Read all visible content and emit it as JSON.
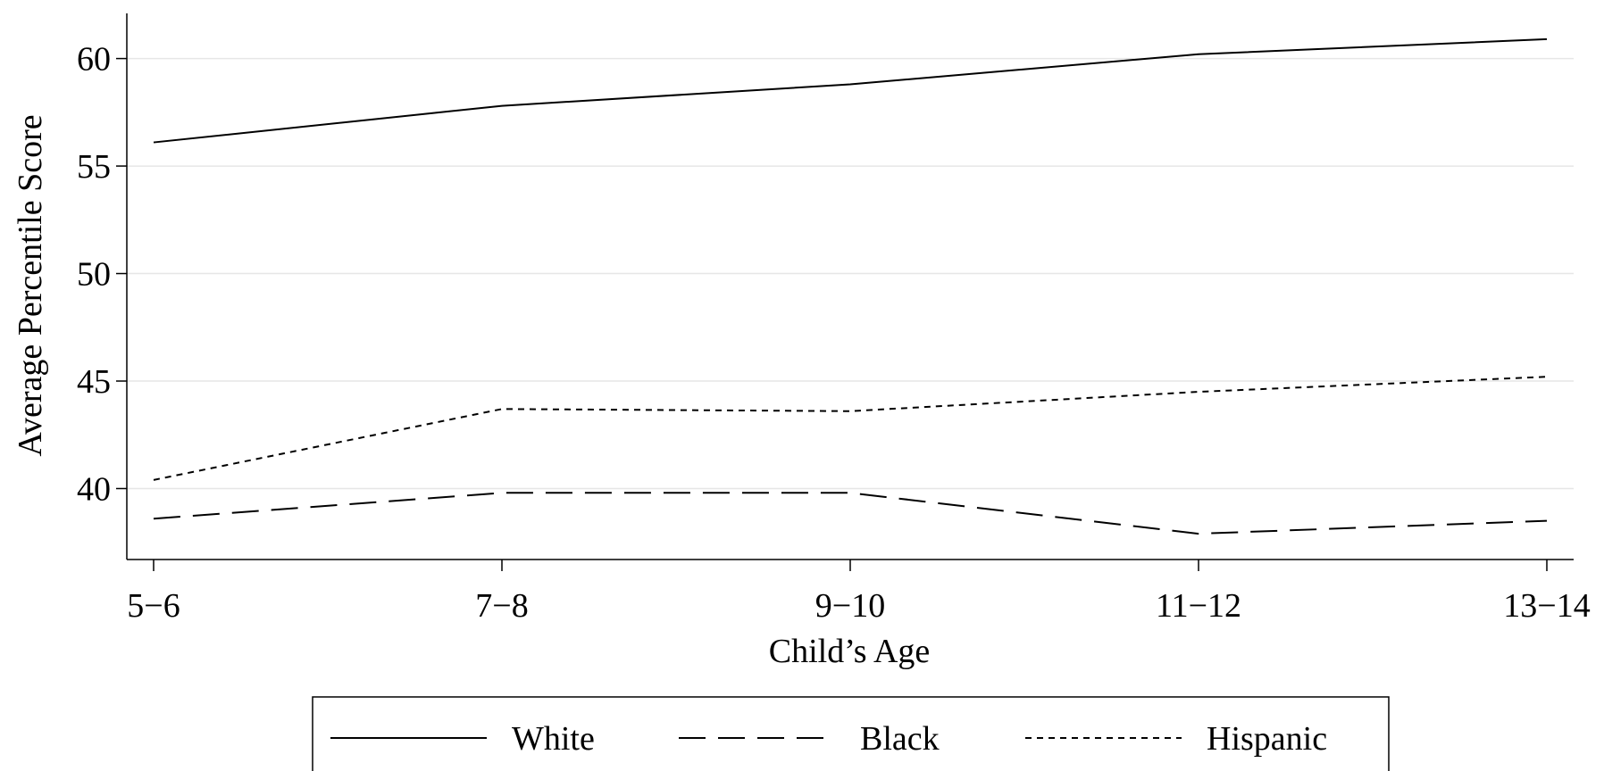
{
  "chart_data": {
    "type": "line",
    "title": "",
    "xlabel": "Child’s Age",
    "ylabel": "Average Percentile Score",
    "categories": [
      "5−6",
      "7−8",
      "9−10",
      "11−12",
      "13−14"
    ],
    "ylim": [
      36.7,
      62.1
    ],
    "yticks": [
      40,
      45,
      50,
      55,
      60
    ],
    "grid": true,
    "legend_position": "bottom",
    "series": [
      {
        "name": "White",
        "style": "solid",
        "values": [
          56.1,
          57.8,
          58.8,
          60.2,
          60.9
        ]
      },
      {
        "name": "Black",
        "style": "dashed",
        "values": [
          38.6,
          39.8,
          39.8,
          37.9,
          38.5
        ]
      },
      {
        "name": "Hispanic",
        "style": "dotted",
        "values": [
          40.4,
          43.7,
          43.6,
          44.5,
          45.2
        ]
      }
    ],
    "colors": {
      "line": "#000000",
      "grid": "#e6e6e6"
    }
  }
}
